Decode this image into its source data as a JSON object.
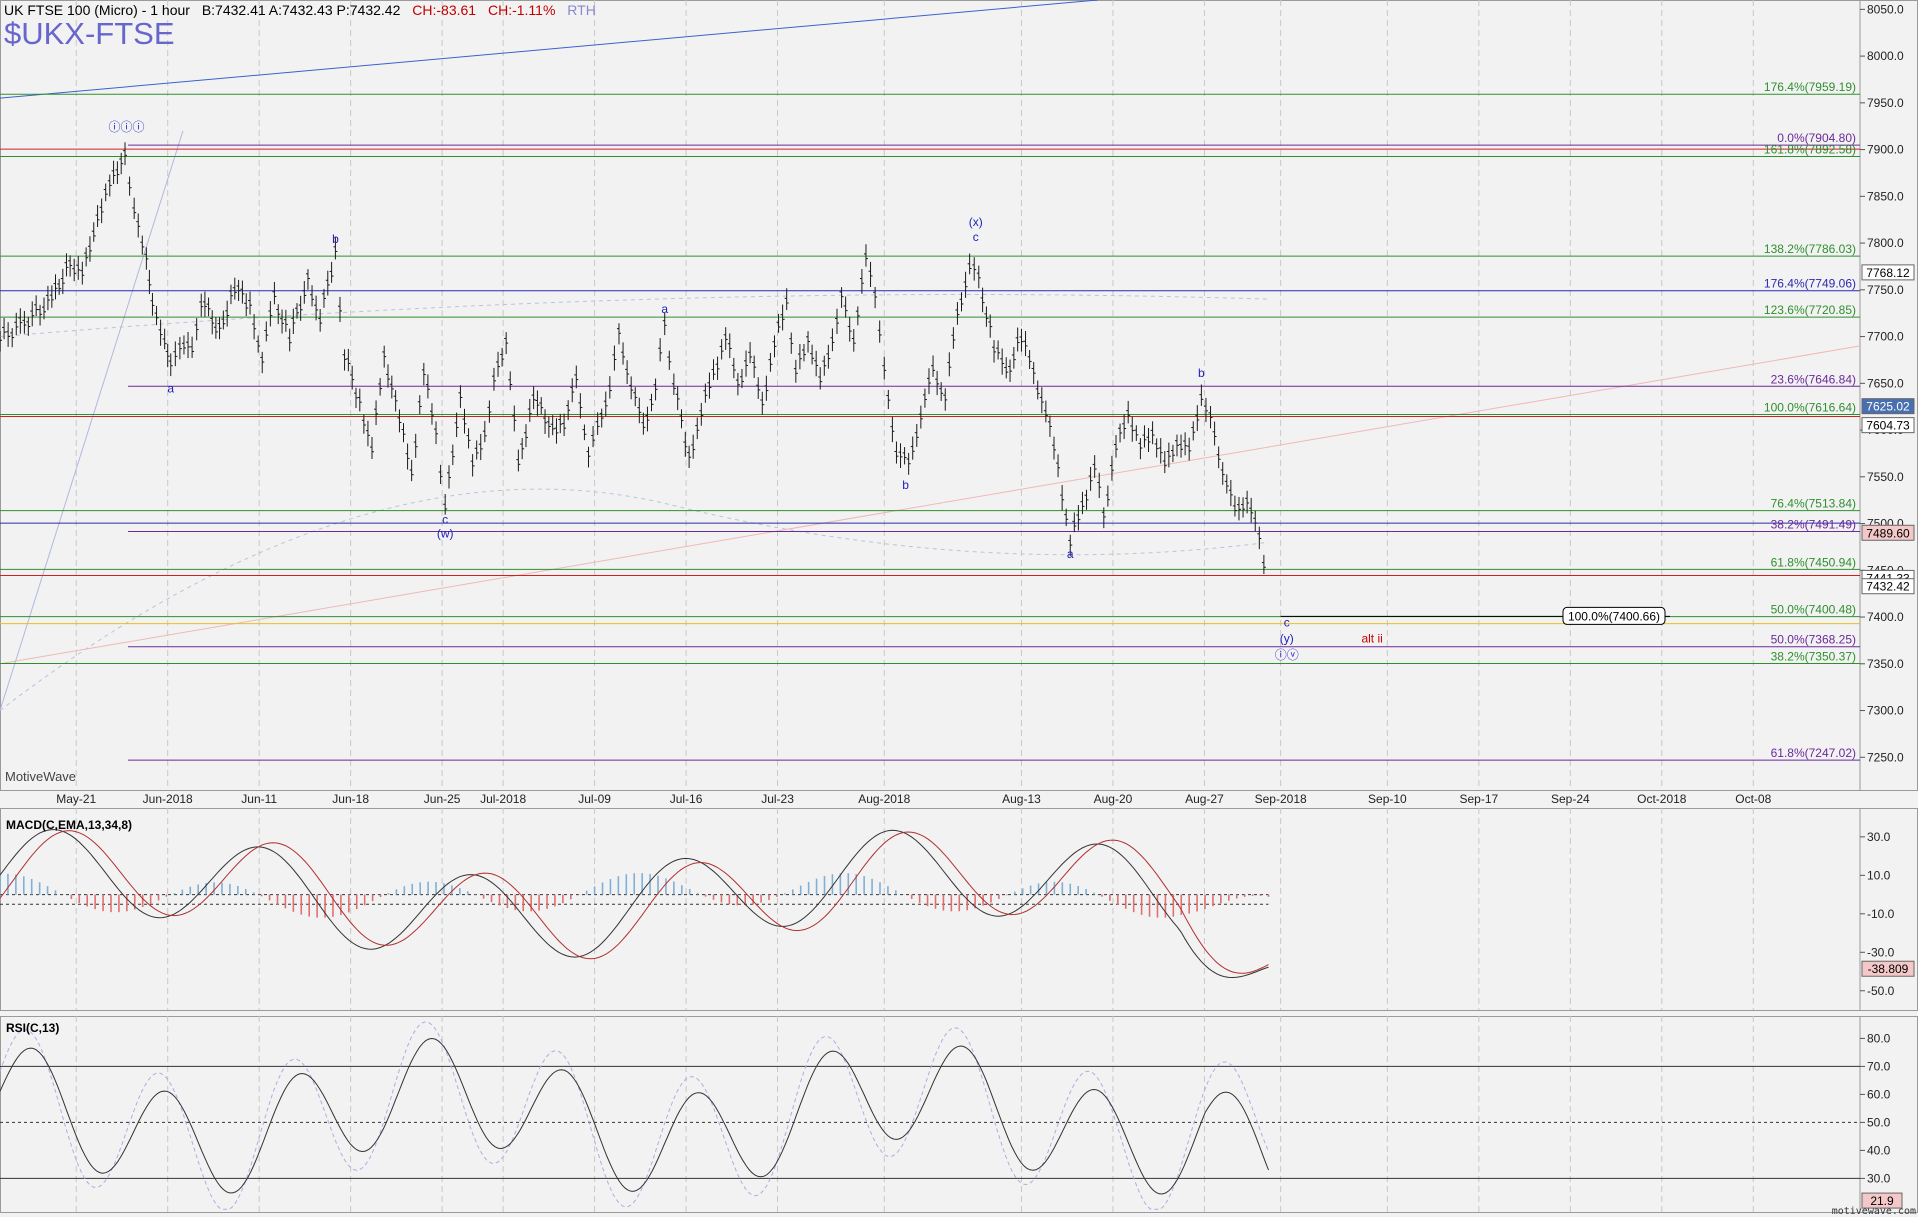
{
  "header": {
    "title": "UK FTSE 100 (Micro) - 1 hour",
    "bid": "B:7432.41",
    "ask": "A:7432.43",
    "price": "P:7432.42",
    "change1": "CH:-83.61",
    "change2": "CH:-1.11%",
    "session": "RTH",
    "symbol": "$UKX-FTSE"
  },
  "brand": "MotiveWave",
  "footer_brand": "motivewave.com",
  "colors": {
    "background": "#f2f2f2",
    "bull_bear_candle": "#1a1a1a",
    "fib_green": "#2f8f2f",
    "fib_blue": "#2a2ab0",
    "fib_purple": "#6a2a9a",
    "fib_red": "#d02020",
    "label_blue": "#2222bb",
    "alt_red": "#cc0000",
    "macd_pos": "#7fb0d8",
    "macd_neg": "#e07070"
  },
  "chart_data": [
    {
      "type": "line",
      "title": "UK FTSE 100 (Micro) - 1 hour",
      "ylim": [
        7215,
        8060
      ],
      "y_ticks": [
        "7250.0",
        "7300.0",
        "7350.0",
        "7400.0",
        "7450.0",
        "7500.0",
        "7550.0",
        "7600.0",
        "7650.0",
        "7700.0",
        "7750.0",
        "7800.0",
        "7850.0",
        "7900.0",
        "7950.0",
        "8000.0",
        "8050.0"
      ],
      "x_tick_labels": [
        "May-21",
        "Jun-2018",
        "Jun-11",
        "Jun-18",
        "Jun-25",
        "Jul-2018",
        "Jul-09",
        "Jul-16",
        "Jul-23",
        "Aug-2018",
        "Aug-13",
        "Aug-20",
        "Aug-27",
        "Sep-2018",
        "Sep-10",
        "Sep-17",
        "Sep-24",
        "Oct-2018",
        "Oct-08"
      ],
      "x_tick_positions": [
        0.5,
        3.5,
        6.5,
        9.5,
        12.5,
        14.5,
        17.5,
        20.5,
        23.5,
        27,
        31.5,
        34.5,
        37.5,
        40,
        43.5,
        46.5,
        49.5,
        52.5,
        55.5
      ],
      "x_domain": [
        -2,
        59
      ],
      "price_path": [
        [
          -2,
          7698
        ],
        [
          -1.2,
          7715
        ],
        [
          -0.3,
          7740
        ],
        [
          0.3,
          7780
        ],
        [
          0.7,
          7765
        ],
        [
          1.2,
          7830
        ],
        [
          1.6,
          7860
        ],
        [
          2.1,
          7900
        ],
        [
          2.4,
          7830
        ],
        [
          2.8,
          7790
        ],
        [
          3.0,
          7730
        ],
        [
          3.4,
          7700
        ],
        [
          3.6,
          7665
        ],
        [
          3.9,
          7695
        ],
        [
          4.3,
          7680
        ],
        [
          4.6,
          7740
        ],
        [
          5.2,
          7705
        ],
        [
          5.7,
          7755
        ],
        [
          6.2,
          7730
        ],
        [
          6.6,
          7680
        ],
        [
          7.0,
          7740
        ],
        [
          7.5,
          7700
        ],
        [
          8.1,
          7760
        ],
        [
          8.5,
          7720
        ],
        [
          9.0,
          7790
        ],
        [
          9.3,
          7680
        ],
        [
          9.8,
          7630
        ],
        [
          10.2,
          7580
        ],
        [
          10.6,
          7680
        ],
        [
          11.1,
          7610
        ],
        [
          11.5,
          7555
        ],
        [
          11.9,
          7660
        ],
        [
          12.3,
          7600
        ],
        [
          12.6,
          7515
        ],
        [
          13.1,
          7640
        ],
        [
          13.5,
          7560
        ],
        [
          13.9,
          7600
        ],
        [
          14.2,
          7650
        ],
        [
          14.6,
          7700
        ],
        [
          15.0,
          7560
        ],
        [
          15.5,
          7640
        ],
        [
          16.0,
          7600
        ],
        [
          16.5,
          7610
        ],
        [
          16.9,
          7650
        ],
        [
          17.3,
          7580
        ],
        [
          17.6,
          7600
        ],
        [
          18.0,
          7650
        ],
        [
          18.3,
          7700
        ],
        [
          18.7,
          7650
        ],
        [
          19.1,
          7600
        ],
        [
          19.5,
          7650
        ],
        [
          19.8,
          7710
        ],
        [
          20.1,
          7650
        ],
        [
          20.6,
          7570
        ],
        [
          21.0,
          7620
        ],
        [
          21.4,
          7660
        ],
        [
          21.8,
          7700
        ],
        [
          22.2,
          7650
        ],
        [
          22.6,
          7680
        ],
        [
          23.0,
          7630
        ],
        [
          23.4,
          7690
        ],
        [
          23.8,
          7740
        ],
        [
          24.1,
          7660
        ],
        [
          24.5,
          7700
        ],
        [
          24.9,
          7650
        ],
        [
          25.3,
          7700
        ],
        [
          25.6,
          7740
        ],
        [
          26.0,
          7700
        ],
        [
          26.4,
          7780
        ],
        [
          26.7,
          7750
        ],
        [
          27.0,
          7660
        ],
        [
          27.4,
          7580
        ],
        [
          27.8,
          7560
        ],
        [
          28.2,
          7620
        ],
        [
          28.6,
          7660
        ],
        [
          29.0,
          7640
        ],
        [
          29.4,
          7720
        ],
        [
          29.8,
          7780
        ],
        [
          30.1,
          7760
        ],
        [
          30.6,
          7690
        ],
        [
          31.0,
          7660
        ],
        [
          31.5,
          7700
        ],
        [
          31.9,
          7660
        ],
        [
          32.3,
          7620
        ],
        [
          32.7,
          7560
        ],
        [
          33.1,
          7480
        ],
        [
          33.5,
          7520
        ],
        [
          33.9,
          7560
        ],
        [
          34.2,
          7510
        ],
        [
          34.6,
          7580
        ],
        [
          35.0,
          7620
        ],
        [
          35.4,
          7580
        ],
        [
          35.8,
          7600
        ],
        [
          36.2,
          7560
        ],
        [
          36.6,
          7590
        ],
        [
          37.0,
          7575
        ],
        [
          37.4,
          7640
        ],
        [
          37.7,
          7610
        ],
        [
          38.1,
          7560
        ],
        [
          38.5,
          7510
        ],
        [
          38.9,
          7530
        ],
        [
          39.3,
          7480
        ],
        [
          39.6,
          7432
        ]
      ],
      "fib_lines": [
        {
          "label": "176.4%(7959.19)",
          "value": 7959.19,
          "color": "#2f8f2f",
          "start": -2
        },
        {
          "label": "0.0%(7904.80)",
          "value": 7904.8,
          "color": "#6a2a9a",
          "start": 2.2
        },
        {
          "label": "161.8%(7892.58)",
          "value": 7892.58,
          "color": "#2f8f2f",
          "start": -2
        },
        {
          "label": "138.2%(7786.03)",
          "value": 7786.03,
          "color": "#2f8f2f",
          "start": -2
        },
        {
          "label": "176.4%(7749.06)",
          "value": 7749.06,
          "color": "#2a2ab0",
          "start": -2
        },
        {
          "label": "123.6%(7720.85)",
          "value": 7720.85,
          "color": "#2f8f2f",
          "start": -2
        },
        {
          "label": "23.6%(7646.84)",
          "value": 7646.84,
          "color": "#6a2a9a",
          "start": 2.2
        },
        {
          "label": "100.0%(7616.64)",
          "value": 7616.64,
          "color": "#2f8f2f",
          "start": -2
        },
        {
          "label": "76.4%(7513.84)",
          "value": 7513.84,
          "color": "#2f8f2f",
          "start": -2
        },
        {
          "label": "38.2%(7491.49)",
          "value": 7491.49,
          "color": "#6a2a9a",
          "start": 2.2
        },
        {
          "label": "61.8%(7450.94)",
          "value": 7450.94,
          "color": "#2f8f2f",
          "start": -2
        },
        {
          "label": "50.0%(7400.48)",
          "value": 7400.48,
          "color": "#2f8f2f",
          "start": -2
        },
        {
          "label": "50.0%(7368.25)",
          "value": 7368.25,
          "color": "#6a2a9a",
          "start": 2.2
        },
        {
          "label": "38.2%(7350.37)",
          "value": 7350.37,
          "color": "#2f8f2f",
          "start": -2
        },
        {
          "label": "61.8%(7247.02)",
          "value": 7247.02,
          "color": "#6a2a9a",
          "start": 2.2
        }
      ],
      "plain_lines": [
        {
          "value": 7900.5,
          "color": "#d02020"
        },
        {
          "value": 7614.5,
          "color": "#d02020"
        },
        {
          "value": 7444.5,
          "color": "#d02020"
        },
        {
          "value": 7500.5,
          "color": "#2a2ab0"
        },
        {
          "value": 7393.0,
          "color": "#e8c020"
        }
      ],
      "target_box": {
        "label": "100.0%(7400.66)",
        "value": 7400.66,
        "start": 40.0
      },
      "price_badges": [
        {
          "label": "7768.12",
          "value": 7768.12,
          "bg": "#ffffff",
          "fg": "#000000"
        },
        {
          "label": "7625.02",
          "value": 7625.02,
          "bg": "#4a6fb0",
          "fg": "#ffffff"
        },
        {
          "label": "7604.73",
          "value": 7604.73,
          "bg": "#ffffff",
          "fg": "#000000"
        },
        {
          "label": "7489.60",
          "value": 7489.6,
          "bg": "#f4c8c8",
          "fg": "#000000"
        },
        {
          "label": "7441.33",
          "value": 7441.33,
          "bg": "#ffffff",
          "fg": "#000000"
        },
        {
          "label": "7432.42",
          "value": 7432.42,
          "bg": "#ffffff",
          "fg": "#000000"
        }
      ],
      "wave_labels": [
        {
          "text": "ⓘⓘⓘ",
          "x": 2.15,
          "y": 7920,
          "color": "#2222bb"
        },
        {
          "text": "b",
          "x": 9.0,
          "y": 7800,
          "color": "#2222bb"
        },
        {
          "text": "a",
          "x": 3.6,
          "y": 7640,
          "color": "#2222bb"
        },
        {
          "text": "c",
          "x": 12.6,
          "y": 7500,
          "color": "#2222bb"
        },
        {
          "text": "(w)",
          "x": 12.6,
          "y": 7485,
          "color": "#2222bb"
        },
        {
          "text": "a",
          "x": 19.8,
          "y": 7725,
          "color": "#2222bb"
        },
        {
          "text": "b",
          "x": 27.7,
          "y": 7537,
          "color": "#2222bb"
        },
        {
          "text": "(x)",
          "x": 30.0,
          "y": 7818,
          "color": "#2222bb"
        },
        {
          "text": "c",
          "x": 30.0,
          "y": 7802,
          "color": "#2222bb"
        },
        {
          "text": "a",
          "x": 33.1,
          "y": 7463,
          "color": "#2222bb"
        },
        {
          "text": "b",
          "x": 37.4,
          "y": 7657,
          "color": "#2222bb"
        },
        {
          "text": "c",
          "x": 40.2,
          "y": 7390,
          "color": "#2222bb"
        },
        {
          "text": "(y)",
          "x": 40.2,
          "y": 7373,
          "color": "#2222bb"
        },
        {
          "text": "ⓘⓥ",
          "x": 40.2,
          "y": 7355,
          "color": "#2222bb"
        },
        {
          "text": "alt ii",
          "x": 43.0,
          "y": 7373,
          "color": "#cc0000"
        }
      ]
    },
    {
      "type": "bar",
      "title": "MACD(C,EMA,13,34,8)",
      "ylim": [
        -60,
        45
      ],
      "y_ticks": [
        "30.0",
        "10.0",
        "-10.0",
        "-30.0",
        "-50.0"
      ],
      "reference_lines": [
        0,
        -5
      ],
      "last_value_label": "-38.809",
      "last_value": -38.809
    },
    {
      "type": "line",
      "title": "RSI(C,13)",
      "ylim": [
        18,
        88
      ],
      "y_ticks": [
        "80.0",
        "70.0",
        "60.0",
        "50.0",
        "40.0",
        "30.0"
      ],
      "reference_lines": [
        70,
        50,
        30
      ],
      "last_value_label": "21.9",
      "last_value": 21.9
    }
  ]
}
